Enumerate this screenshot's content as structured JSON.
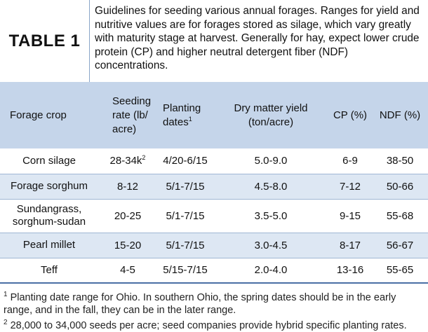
{
  "header": {
    "label": "TABLE 1",
    "caption": "Guidelines for seeding various annual forages. Ranges for yield and nutritive values are for forages stored as silage, which vary greatly with maturity stage at harvest. Generally for hay, expect lower crude protein (CP) and higher neutral detergent fiber (NDF) concentrations."
  },
  "columns": {
    "crop": "Forage crop",
    "seeding": "Seeding rate (lb/ acre)",
    "planting": "Planting dates",
    "planting_mark": "1",
    "yield": "Dry matter yield (ton/acre)",
    "cp": "CP (%)",
    "ndf": "NDF (%)"
  },
  "rows": [
    {
      "crop": "Corn silage",
      "seeding": "28-34k",
      "seeding_mark": "2",
      "planting": "4/20-6/15",
      "yield": "5.0-9.0",
      "cp": "6-9",
      "ndf": "38-50"
    },
    {
      "crop": "Forage sorghum",
      "seeding": "8-12",
      "seeding_mark": "",
      "planting": "5/1-7/15",
      "yield": "4.5-8.0",
      "cp": "7-12",
      "ndf": "50-66"
    },
    {
      "crop": "Sundangrass, sorghum-sudan",
      "seeding": "20-25",
      "seeding_mark": "",
      "planting": "5/1-7/15",
      "yield": "3.5-5.0",
      "cp": "9-15",
      "ndf": "55-68"
    },
    {
      "crop": "Pearl millet",
      "seeding": "15-20",
      "seeding_mark": "",
      "planting": "5/1-7/15",
      "yield": "3.0-4.5",
      "cp": "8-17",
      "ndf": "56-67"
    },
    {
      "crop": "Teff",
      "seeding": "4-5",
      "seeding_mark": "",
      "planting": "5/15-7/15",
      "yield": "2.0-4.0",
      "cp": "13-16",
      "ndf": "55-65"
    }
  ],
  "footnotes": [
    {
      "mark": "1",
      "text": "Planting date range for Ohio. In southern Ohio, the spring dates should be in the early range, and in the fall, they can be in the later range."
    },
    {
      "mark": "2",
      "text": "28,000 to 34,000 seeds per acre; seed companies provide hybrid specific planting rates."
    }
  ]
}
